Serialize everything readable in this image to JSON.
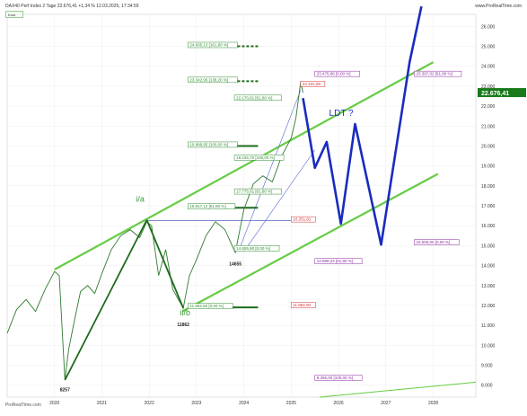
{
  "header": {
    "title": "DAX40 Perf Index 2 Tage 22.676,41 +1,34 % 12.03.2025, 17:34:59",
    "site": "www.ProRealTime.com"
  },
  "legend_label": "Kurs",
  "watermark": "ProRealTime.com",
  "chart_data": {
    "type": "line",
    "title": "",
    "xlabel": "",
    "ylabel": "",
    "x_ticks": [
      "2020",
      "2021",
      "2022",
      "2023",
      "2024",
      "2025",
      "2026",
      "2027",
      "2028"
    ],
    "y_ticks": [
      8000,
      9000,
      10000,
      11000,
      12000,
      13000,
      14000,
      15000,
      16000,
      17000,
      18000,
      19000,
      20000,
      21000,
      22000,
      23000,
      24000,
      25000,
      26000
    ],
    "y_tick_labels": [
      "8.000",
      "9.000",
      "10.000",
      "11.000",
      "12.000",
      "13.000",
      "14.000",
      "15.000",
      "16.000",
      "17.000",
      "18.000",
      "19.000",
      "20.000",
      "21.000",
      "22.000",
      "23.000",
      "24.000",
      "25.000",
      "26.000"
    ],
    "ylim": [
      7400,
      26600
    ],
    "xlim": [
      2019.0,
      2028.9
    ],
    "current_price": 22676.41,
    "current_price_label": "22.676,41",
    "price": [
      [
        2019.0,
        10600
      ],
      [
        2019.2,
        11800
      ],
      [
        2019.4,
        12300
      ],
      [
        2019.6,
        11700
      ],
      [
        2019.8,
        12800
      ],
      [
        2020.0,
        13700
      ],
      [
        2020.1,
        13500
      ],
      [
        2020.22,
        8257
      ],
      [
        2020.3,
        9800
      ],
      [
        2020.4,
        11000
      ],
      [
        2020.55,
        12700
      ],
      [
        2020.7,
        13000
      ],
      [
        2020.85,
        12600
      ],
      [
        2021.0,
        13600
      ],
      [
        2021.2,
        14800
      ],
      [
        2021.4,
        15500
      ],
      [
        2021.6,
        15800
      ],
      [
        2021.8,
        15400
      ],
      [
        2021.95,
        16200
      ],
      [
        2022.05,
        16000
      ],
      [
        2022.2,
        13500
      ],
      [
        2022.35,
        14800
      ],
      [
        2022.5,
        12800
      ],
      [
        2022.72,
        11862
      ],
      [
        2022.85,
        13500
      ],
      [
        2023.0,
        14300
      ],
      [
        2023.2,
        15500
      ],
      [
        2023.4,
        16200
      ],
      [
        2023.6,
        15800
      ],
      [
        2023.82,
        14655
      ],
      [
        2024.0,
        16800
      ],
      [
        2024.2,
        18100
      ],
      [
        2024.4,
        18500
      ],
      [
        2024.6,
        18200
      ],
      [
        2024.8,
        19500
      ],
      [
        2025.0,
        20400
      ],
      [
        2025.1,
        21400
      ],
      [
        2025.2,
        23200
      ],
      [
        2025.25,
        22676
      ]
    ],
    "channels": [
      {
        "from": [
          2020.0,
          13800
        ],
        "to": [
          2028.0,
          24200
        ]
      },
      {
        "from": [
          2022.7,
          11700
        ],
        "to": [
          2028.1,
          18600
        ]
      }
    ],
    "thin_channel": [
      {
        "from": [
          2023.9,
          14800
        ],
        "to": [
          2025.2,
          22800
        ]
      },
      {
        "from": [
          2024.0,
          14700
        ],
        "to": [
          2025.5,
          19800
        ]
      }
    ],
    "bottom_line": {
      "from": [
        2025.6,
        7400
      ],
      "to": [
        2028.9,
        8150
      ]
    },
    "wave_lines": [
      {
        "from": [
          2020.22,
          8257
        ],
        "to": [
          2021.95,
          16290
        ]
      },
      {
        "from": [
          2021.95,
          16290
        ],
        "to": [
          2022.72,
          11862
        ]
      }
    ],
    "forecast": [
      [
        2025.25,
        22400
      ],
      [
        2025.5,
        18900
      ],
      [
        2025.75,
        20200
      ],
      [
        2026.05,
        16100
      ],
      [
        2026.35,
        21100
      ],
      [
        2026.9,
        15050
      ],
      [
        2027.5,
        24200
      ],
      [
        2027.75,
        27000
      ]
    ],
    "wave_labels": [
      {
        "text": "i/a",
        "x": 2021.72,
        "y": 17200
      },
      {
        "text": "ii/b",
        "x": 2022.65,
        "y": 11500
      },
      {
        "text": "LDT ?",
        "x": 2025.8,
        "y": 21500
      }
    ],
    "price_labels": [
      {
        "text": "8257",
        "x": 2020.22,
        "y": 7700
      },
      {
        "text": "11862",
        "x": 2022.72,
        "y": 10950
      },
      {
        "text": "14655",
        "x": 2023.82,
        "y": 14000
      }
    ],
    "fib_levels": [
      {
        "text": "24.605,13 [161,80 %]",
        "x": 2022.82,
        "y": 25000,
        "color": "#2e8b2e",
        "line_to": 2024.3,
        "dashed": true,
        "thick": true
      },
      {
        "text": "23.342,95 [138,20 %]",
        "x": 2022.82,
        "y": 23250,
        "color": "#2e8b2e",
        "line_to": 2024.3,
        "dashed": true,
        "thick": true
      },
      {
        "text": "22.170,61 [61,80 %]",
        "x": 2023.8,
        "y": 22350,
        "color": "#2e8b2e",
        "line_to": null,
        "dashed": false,
        "thick": false
      },
      {
        "text": "19.888,85 [100,00 %]",
        "x": 2022.82,
        "y": 20000,
        "color": "#2e8b2e",
        "line_to": 2024.3,
        "dashed": false,
        "thick": true
      },
      {
        "text": "19.226,70 [100,00 %]",
        "x": 2023.8,
        "y": 19350,
        "color": "#2e8b2e",
        "line_to": null,
        "dashed": false,
        "thick": false
      },
      {
        "text": "17.775,61 [61,80 %]",
        "x": 2023.8,
        "y": 17650,
        "color": "#2e8b2e",
        "line_to": null,
        "dashed": false,
        "thick": false
      },
      {
        "text": "16.817,12 [61,80 %]",
        "x": 2022.82,
        "y": 16900,
        "color": "#2e8b2e",
        "line_to": 2024.3,
        "dashed": false,
        "thick": true
      },
      {
        "text": "14.655,90 [0,00 %]",
        "x": 2023.8,
        "y": 14800,
        "color": "#2e8b2e",
        "line_to": null,
        "dashed": false,
        "thick": false
      },
      {
        "text": "11.862,60 [0,00 %]",
        "x": 2022.82,
        "y": 11900,
        "color": "#2e8b2e",
        "line_to": 2024.3,
        "dashed": false,
        "thick": true
      },
      {
        "text": "23.475,86 [0,00 %]",
        "x": 2025.5,
        "y": 23550,
        "color": "#8a2aa0",
        "line_to": null,
        "dashed": false,
        "thick": false
      },
      {
        "text": "23.397,02 [61,80 %]",
        "x": 2027.6,
        "y": 23550,
        "color": "#8a2aa0",
        "line_to": null,
        "dashed": false,
        "thick": false
      },
      {
        "text": "14.889,24 [61,80 %]",
        "x": 2025.5,
        "y": 14150,
        "color": "#8a2aa0",
        "line_to": null,
        "dashed": false,
        "thick": false
      },
      {
        "text": "15.000,00 [0,00 %]",
        "x": 2027.6,
        "y": 15100,
        "color": "#8a2aa0",
        "line_to": null,
        "dashed": false,
        "thick": false
      },
      {
        "text": "8.255,00 [100,00 %]",
        "x": 2025.5,
        "y": 8300,
        "color": "#8a2aa0",
        "line_to": null,
        "dashed": false,
        "thick": false
      },
      {
        "text": "22.231,08",
        "x": 2025.2,
        "y": 23050,
        "color": "#d03030",
        "line_to": null,
        "dashed": false,
        "thick": false
      },
      {
        "text": "16.251,81",
        "x": 2025.0,
        "y": 16250,
        "color": "#d03030",
        "line_to": null,
        "dashed": false,
        "thick": false
      },
      {
        "text": "11.862,00",
        "x": 2025.0,
        "y": 11950,
        "color": "#d03030",
        "line_to": null,
        "dashed": false,
        "thick": false
      }
    ],
    "colors": {
      "price": "#2f7a2f",
      "channel": "#66cc44",
      "wave": "#1e6b1e",
      "forecast": "#1a2bbf",
      "thin": "#5566cc",
      "hline": "#5566bb",
      "grid": "#ececec",
      "price_tag": "#1a7a1a"
    }
  }
}
